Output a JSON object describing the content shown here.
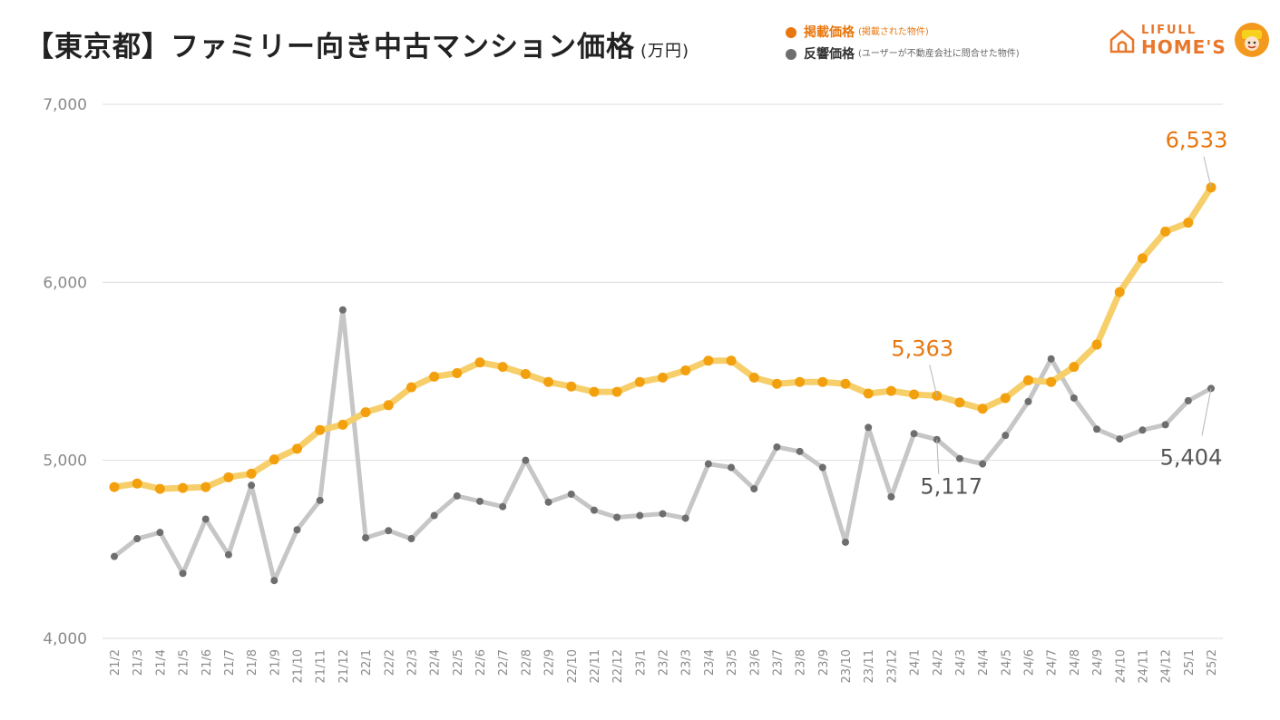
{
  "header": {
    "title": "【東京都】ファミリー向き中古マンション価格",
    "unit": "(万円)"
  },
  "legend": [
    {
      "name": "掲載価格",
      "note": "(掲載された物件)",
      "color": "#e8770f"
    },
    {
      "name": "反響価格",
      "note": "(ユーザーが不動産会社に問合せた物件)",
      "color": "#6e6e6e"
    }
  ],
  "logo": {
    "line1": "LIFULL",
    "line2": "HOME'S"
  },
  "colors": {
    "listed_line": "#f6cf6b",
    "listed_point": "#f3a00e",
    "listed_label": "#e8770f",
    "inquiry_line": "#c6c6c6",
    "inquiry_point": "#6e6e6e",
    "inquiry_label": "#555555",
    "grid": "#dddddd",
    "axis_text": "#8a8a8a"
  },
  "chart_data": {
    "type": "line",
    "title": "【東京都】ファミリー向き中古マンション価格",
    "ylabel": "万円",
    "ylim": [
      4000,
      7000
    ],
    "yticks": [
      4000,
      5000,
      6000,
      7000
    ],
    "ytick_labels": [
      "4,000",
      "5,000",
      "6,000",
      "7,000"
    ],
    "grid": true,
    "categories": [
      "21/2",
      "21/3",
      "21/4",
      "21/5",
      "21/6",
      "21/7",
      "21/8",
      "21/9",
      "21/10",
      "21/11",
      "21/12",
      "22/1",
      "22/2",
      "22/3",
      "22/4",
      "22/5",
      "22/6",
      "22/7",
      "22/8",
      "22/9",
      "22/10",
      "22/11",
      "22/12",
      "23/1",
      "23/2",
      "23/3",
      "23/4",
      "23/5",
      "23/6",
      "23/7",
      "23/8",
      "23/9",
      "23/10",
      "23/11",
      "23/12",
      "24/1",
      "24/2",
      "24/3",
      "24/4",
      "24/5",
      "24/6",
      "24/7",
      "24/8",
      "24/9",
      "24/10",
      "24/11",
      "24/12",
      "25/1",
      "25/2"
    ],
    "series": [
      {
        "name": "掲載価格",
        "values": [
          4850,
          4870,
          4840,
          4845,
          4850,
          4905,
          4925,
          5005,
          5065,
          5170,
          5200,
          5270,
          5310,
          5410,
          5470,
          5490,
          5550,
          5525,
          5485,
          5440,
          5415,
          5385,
          5385,
          5440,
          5465,
          5505,
          5560,
          5560,
          5465,
          5430,
          5440,
          5440,
          5430,
          5375,
          5390,
          5370,
          5363,
          5325,
          5290,
          5350,
          5450,
          5440,
          5525,
          5650,
          5945,
          6135,
          6285,
          6335,
          6533
        ]
      },
      {
        "name": "反響価格",
        "values": [
          4460,
          4560,
          4595,
          4365,
          4670,
          4470,
          4860,
          4325,
          4610,
          4775,
          5845,
          4565,
          4605,
          4560,
          4690,
          4800,
          4770,
          4740,
          5000,
          4765,
          4810,
          4720,
          4680,
          4690,
          4700,
          4675,
          4980,
          4960,
          4840,
          5075,
          5050,
          4960,
          4540,
          5185,
          4795,
          5150,
          5117,
          5010,
          4980,
          5140,
          5330,
          5570,
          5350,
          5175,
          5120,
          5170,
          5200,
          5335,
          5404
        ]
      }
    ],
    "annotations": [
      {
        "series": 0,
        "index": 36,
        "label": "5,363",
        "placement": "above-left"
      },
      {
        "series": 0,
        "index": 48,
        "label": "6,533",
        "placement": "above-left"
      },
      {
        "series": 1,
        "index": 36,
        "label": "5,117",
        "placement": "below-right"
      },
      {
        "series": 1,
        "index": 48,
        "label": "5,404",
        "placement": "below"
      }
    ]
  }
}
